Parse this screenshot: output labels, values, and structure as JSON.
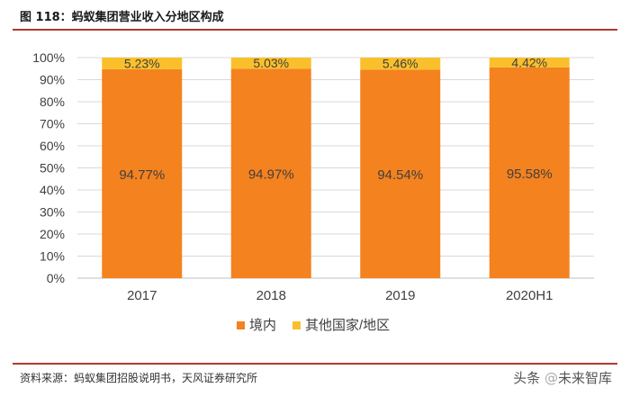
{
  "title": "图 118：蚂蚁集团营业收入分地区构成",
  "source": "资料来源：蚂蚁集团招股说明书，天风证券研究所",
  "watermark": {
    "platform": "头条",
    "at": "@",
    "account": "未来智库"
  },
  "colors": {
    "series1": "#f4821f",
    "series2": "#f9c02b",
    "grid": "#d9d9d9",
    "rule": "#b03a2e",
    "axis": "#bfbfbf"
  },
  "chart_data": {
    "type": "bar",
    "stacked": true,
    "categories": [
      "2017",
      "2018",
      "2019",
      "2020H1"
    ],
    "series": [
      {
        "name": "境内",
        "values": [
          94.77,
          94.97,
          94.54,
          95.58
        ],
        "labels": [
          "94.77%",
          "94.97%",
          "94.54%",
          "95.58%"
        ]
      },
      {
        "name": "其他国家/地区",
        "values": [
          5.23,
          5.03,
          5.46,
          4.42
        ],
        "labels": [
          "5.23%",
          "5.03%",
          "5.46%",
          "4.42%"
        ]
      }
    ],
    "yticks": [
      "0%",
      "10%",
      "20%",
      "30%",
      "40%",
      "50%",
      "60%",
      "70%",
      "80%",
      "90%",
      "100%"
    ],
    "ylim": [
      0,
      100
    ],
    "legend_position": "bottom",
    "grid": true
  }
}
